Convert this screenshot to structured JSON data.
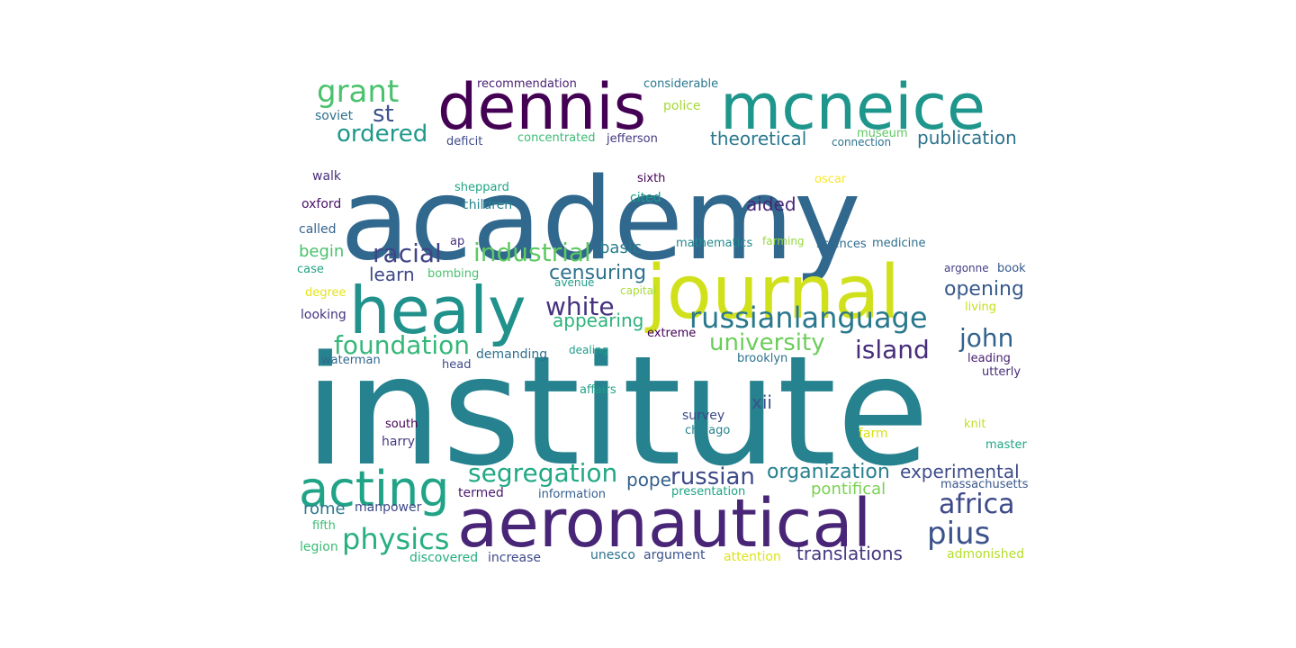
{
  "words": [
    {
      "text": "institute",
      "color": "#26828e"
    },
    {
      "text": "academy",
      "color": "#31688e"
    },
    {
      "text": "aeronautical",
      "color": "#482576"
    },
    {
      "text": "journal",
      "color": "#d0e11c"
    },
    {
      "text": "healy",
      "color": "#21918c"
    },
    {
      "text": "dennis",
      "color": "#440154"
    },
    {
      "text": "mcneice",
      "color": "#1f968b"
    },
    {
      "text": "acting",
      "color": "#20a386"
    },
    {
      "text": "grant",
      "color": "#4ac16d"
    },
    {
      "text": "st",
      "color": "#3b528b"
    },
    {
      "text": "ordered",
      "color": "#1f988b"
    },
    {
      "text": "racial",
      "color": "#414487"
    },
    {
      "text": "industrial",
      "color": "#5ec962"
    },
    {
      "text": "white",
      "color": "#46327e"
    },
    {
      "text": "russianlanguage",
      "color": "#2a788e"
    },
    {
      "text": "foundation",
      "color": "#35b779"
    },
    {
      "text": "physics",
      "color": "#29af7f"
    },
    {
      "text": "segregation",
      "color": "#22a884"
    },
    {
      "text": "russian",
      "color": "#3e4a89"
    },
    {
      "text": "pius",
      "color": "#3b528b"
    },
    {
      "text": "africa",
      "color": "#3e4989"
    },
    {
      "text": "island",
      "color": "#472d7b"
    },
    {
      "text": "john",
      "color": "#33638d"
    },
    {
      "text": "university",
      "color": "#6ccd5a"
    },
    {
      "text": "organization",
      "color": "#277f8e"
    },
    {
      "text": "experimental",
      "color": "#3d4d8a"
    },
    {
      "text": "translations",
      "color": "#453781"
    },
    {
      "text": "pope",
      "color": "#35608d"
    },
    {
      "text": "theoretical",
      "color": "#2a788e"
    },
    {
      "text": "publication",
      "color": "#2c738e"
    },
    {
      "text": "censuring",
      "color": "#2d718e"
    },
    {
      "text": "learn",
      "color": "#3f4788"
    },
    {
      "text": "opening",
      "color": "#38598c"
    },
    {
      "text": "appearing",
      "color": "#2db27d"
    },
    {
      "text": "aided",
      "color": "#482878"
    },
    {
      "text": "basic",
      "color": "#287d8e"
    },
    {
      "text": "xii",
      "color": "#3b528b"
    },
    {
      "text": "pontifical",
      "color": "#7ad151"
    },
    {
      "text": "rome",
      "color": "#2a788e"
    },
    {
      "text": "begin",
      "color": "#4ac16d"
    },
    {
      "text": "recommendation",
      "color": "#481f70"
    },
    {
      "text": "considerable",
      "color": "#2a788e"
    },
    {
      "text": "soviet",
      "color": "#2d708e"
    },
    {
      "text": "police",
      "color": "#a5db36"
    },
    {
      "text": "deficit",
      "color": "#3e4a89"
    },
    {
      "text": "concentrated",
      "color": "#3bbb75"
    },
    {
      "text": "jefferson",
      "color": "#453882"
    },
    {
      "text": "connection",
      "color": "#2c728e"
    },
    {
      "text": "museum",
      "color": "#5ec962"
    },
    {
      "text": "walk",
      "color": "#472f7d"
    },
    {
      "text": "sixth",
      "color": "#440154"
    },
    {
      "text": "oscar",
      "color": "#fde725"
    },
    {
      "text": "sheppard",
      "color": "#21a585"
    },
    {
      "text": "cited",
      "color": "#1e9b8a"
    },
    {
      "text": "oxford",
      "color": "#481467"
    },
    {
      "text": "children",
      "color": "#25838e"
    },
    {
      "text": "called",
      "color": "#33638d"
    },
    {
      "text": "ap",
      "color": "#46307e"
    },
    {
      "text": "mathematics",
      "color": "#23898e"
    },
    {
      "text": "farming",
      "color": "#95d840"
    },
    {
      "text": "sciences",
      "color": "#306a8e"
    },
    {
      "text": "medicine",
      "color": "#2d708e"
    },
    {
      "text": "case",
      "color": "#20a386"
    },
    {
      "text": "bombing",
      "color": "#4ac16d"
    },
    {
      "text": "avenue",
      "color": "#1f9e89"
    },
    {
      "text": "capital",
      "color": "#a8db34"
    },
    {
      "text": "argonne",
      "color": "#433e85"
    },
    {
      "text": "book",
      "color": "#38598c"
    },
    {
      "text": "degree",
      "color": "#e5e419"
    },
    {
      "text": "looking",
      "color": "#46327e"
    },
    {
      "text": "living",
      "color": "#c8e020"
    },
    {
      "text": "extreme",
      "color": "#440154"
    },
    {
      "text": "dealing",
      "color": "#1f9e89"
    },
    {
      "text": "demanding",
      "color": "#2d708e"
    },
    {
      "text": "waterman",
      "color": "#31688e"
    },
    {
      "text": "head",
      "color": "#3e4a89"
    },
    {
      "text": "brooklyn",
      "color": "#2c728e"
    },
    {
      "text": "leading",
      "color": "#481f70"
    },
    {
      "text": "utterly",
      "color": "#472c7a"
    },
    {
      "text": "affairs",
      "color": "#1fa187"
    },
    {
      "text": "survey",
      "color": "#3e4989"
    },
    {
      "text": "south",
      "color": "#440154"
    },
    {
      "text": "knit",
      "color": "#c2df23"
    },
    {
      "text": "harry",
      "color": "#443983"
    },
    {
      "text": "chicago",
      "color": "#26828e"
    },
    {
      "text": "farm",
      "color": "#d8e219"
    },
    {
      "text": "master",
      "color": "#21a685"
    },
    {
      "text": "termed",
      "color": "#481a6c"
    },
    {
      "text": "information",
      "color": "#355f8d"
    },
    {
      "text": "presentation",
      "color": "#20a386"
    },
    {
      "text": "massachusetts",
      "color": "#39568c"
    },
    {
      "text": "manpower",
      "color": "#3e4a89"
    },
    {
      "text": "fifth",
      "color": "#3dbc74"
    },
    {
      "text": "legion",
      "color": "#3bbb75"
    },
    {
      "text": "discovered",
      "color": "#26ad81"
    },
    {
      "text": "increase",
      "color": "#3e4989"
    },
    {
      "text": "unesco",
      "color": "#2c728e"
    },
    {
      "text": "argument",
      "color": "#3b528b"
    },
    {
      "text": "attention",
      "color": "#dde318"
    },
    {
      "text": "admonished",
      "color": "#b5de2b"
    }
  ]
}
